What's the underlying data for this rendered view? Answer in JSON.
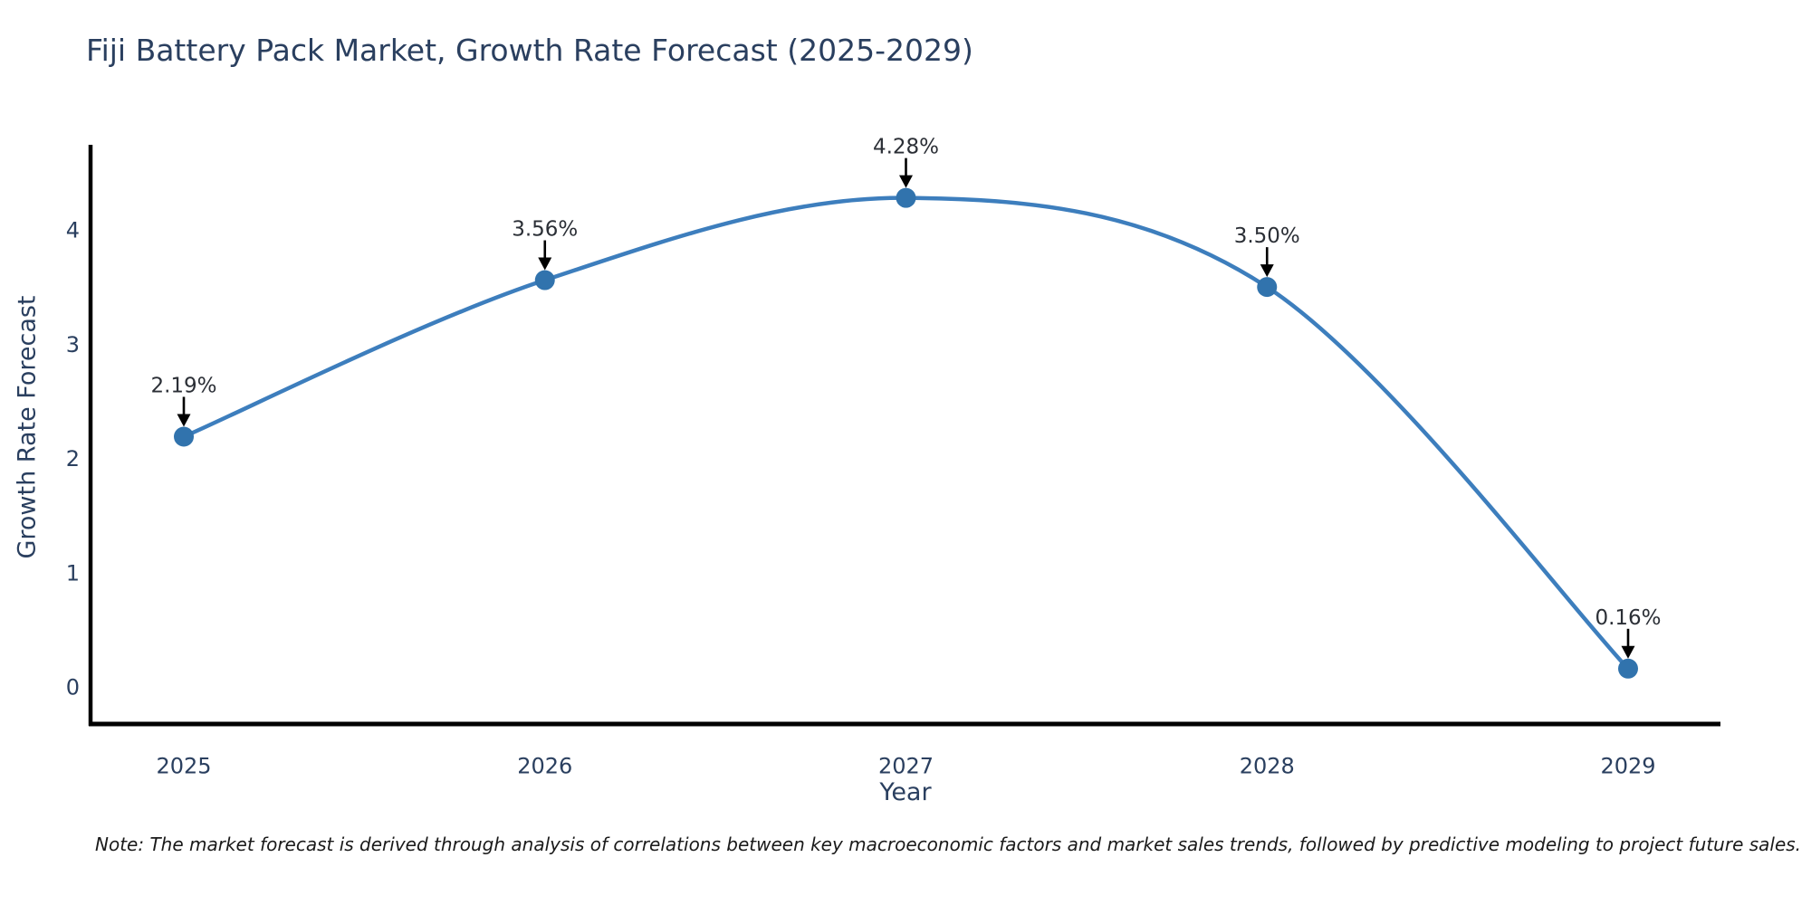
{
  "header": {
    "title": "Fiji Battery Pack Market, Growth Rate Forecast (2025-2029)"
  },
  "footer": {
    "note": "Note: The market forecast is derived through analysis of correlations between key macroeconomic factors and market sales trends, followed by predictive modeling to project future sales."
  },
  "chart_data": {
    "type": "line",
    "title": "Fiji Battery Pack Market, Growth Rate Forecast (2025-2029)",
    "xlabel": "Year",
    "ylabel": "Growth Rate Forecast",
    "categories": [
      "2025",
      "2026",
      "2027",
      "2028",
      "2029"
    ],
    "values": [
      2.19,
      3.56,
      4.28,
      3.5,
      0.16
    ],
    "point_labels": [
      "2.19%",
      "3.56%",
      "4.28%",
      "3.50%",
      "0.16%"
    ],
    "yticks": [
      0,
      1,
      2,
      3,
      4
    ],
    "ylim": [
      -0.33,
      4.75
    ],
    "grid": false,
    "legend": false,
    "marker_shape": "circle",
    "annotation_style": "value label with black down-arrow to each point",
    "colors": {
      "line": "#3d7ebd",
      "marker": "#3173ad",
      "arrow": "#000000",
      "axis": "#000000",
      "title_text": "#2a3f5f",
      "tick_text": "#2a3f5f",
      "annotation_text": "#2b2f36",
      "note_text": "#1a1a1a",
      "background": "#ffffff"
    }
  }
}
